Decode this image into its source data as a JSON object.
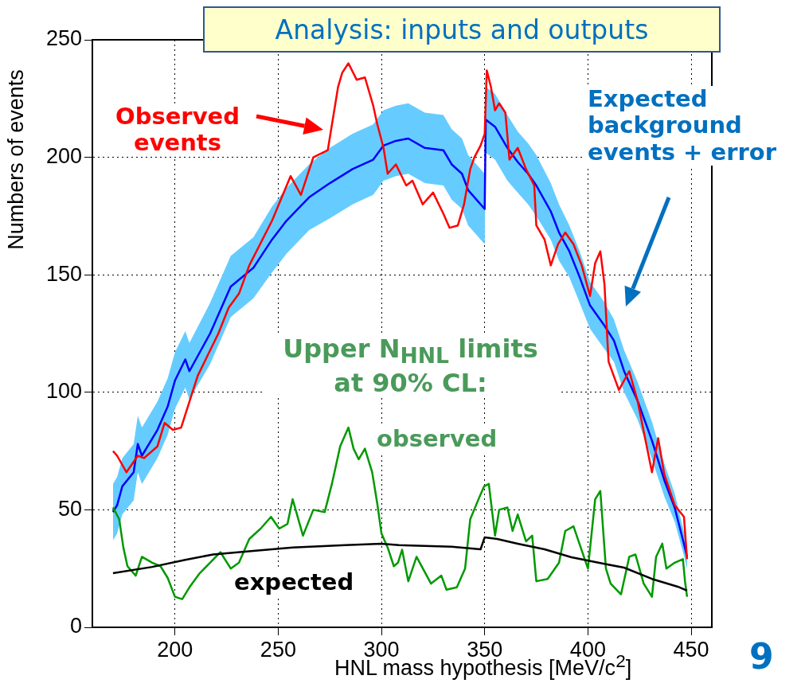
{
  "chart_data": {
    "type": "line",
    "title": "Analysis: inputs and outputs",
    "xlabel": "HNL mass hypothesis [MeV/c$^{2}$]",
    "ylabel": "Numbers of events",
    "xlim": [
      160,
      460
    ],
    "xticks": [
      200,
      250,
      300,
      350,
      400,
      450
    ],
    "ylim": [
      0,
      250
    ],
    "yticks": [
      0,
      50,
      100,
      150,
      200,
      250
    ],
    "grid": true,
    "annotations": [
      "Upper N$_{HNL}$ limits at 90% CL:",
      "9"
    ],
    "series": [
      {
        "name": "Expected background events + error",
        "color": "#0000ff",
        "x": [
          170,
          172,
          174.5,
          180,
          182,
          184,
          191.5,
          196.5,
          200,
          205,
          207,
          217,
          227,
          238,
          247,
          254,
          265,
          275,
          286,
          296,
          301,
          307,
          313,
          321,
          330,
          334,
          339,
          342,
          350,
          350.5,
          355,
          361,
          366,
          371,
          375,
          382,
          386,
          391,
          396,
          401,
          407.5,
          412.6,
          417.5,
          424,
          431,
          437,
          442,
          446.5,
          448
        ],
        "values": [
          49,
          52,
          60,
          66,
          78,
          73,
          84,
          94,
          105,
          114,
          109,
          125,
          145,
          153,
          165,
          173,
          183,
          189,
          195,
          199,
          205,
          207,
          208,
          204,
          203,
          197,
          193,
          186,
          178,
          216,
          213,
          204,
          198,
          193,
          188,
          177,
          168,
          160,
          149,
          137,
          129,
          122,
          109,
          96.5,
          79.5,
          62.6,
          51,
          35.5,
          30
        ],
        "lower": [
          37,
          40,
          48,
          54,
          66,
          61,
          72,
          82,
          93,
          102,
          97,
          112,
          132,
          140,
          151,
          159,
          169,
          174,
          180,
          184,
          190,
          192,
          193,
          189,
          188,
          182,
          178,
          171,
          163,
          202,
          199,
          190,
          185,
          180,
          175,
          165,
          156,
          149,
          138,
          127,
          119,
          113,
          100,
          88.5,
          71.5,
          55.6,
          45,
          30.5,
          25
        ],
        "upper": [
          61,
          64,
          72,
          78,
          90,
          85,
          96,
          106,
          117,
          126,
          121,
          138,
          158,
          166,
          179,
          187,
          197,
          204,
          210,
          214,
          220,
          222,
          223,
          219,
          218,
          212,
          208,
          201,
          193,
          230,
          227,
          218,
          211,
          206,
          201,
          189,
          180,
          171,
          160,
          147,
          139,
          131,
          118,
          104.5,
          87.5,
          69.6,
          57,
          40.5,
          35
        ]
      },
      {
        "name": "Observed events",
        "color": "#ff0000",
        "x": [
          170,
          172,
          176.5,
          182,
          185,
          191.5,
          195,
          199,
          203,
          207,
          211,
          216,
          221,
          226,
          231,
          236,
          247,
          256,
          261,
          267,
          274,
          279,
          281,
          284,
          288,
          292,
          296,
          298,
          301,
          303,
          307,
          312,
          315,
          320,
          325,
          330,
          333,
          337,
          340,
          343,
          345,
          348,
          350,
          351,
          353,
          355,
          357,
          360,
          362,
          366,
          370,
          374,
          375,
          379,
          382,
          385.5,
          389,
          393,
          397,
          401,
          403.5,
          406,
          408,
          409.5,
          410,
          415,
          420,
          424,
          431,
          434,
          437,
          442,
          446.5,
          448
        ],
        "values": [
          75,
          73,
          66,
          73,
          72,
          77,
          87,
          84,
          85,
          96,
          107,
          116,
          125,
          136,
          142,
          154,
          173,
          192,
          184,
          200,
          203,
          230,
          236,
          240,
          233,
          234,
          222,
          214,
          204,
          193,
          197,
          188,
          190,
          180,
          185,
          176,
          170,
          171,
          180,
          195,
          200,
          205,
          210,
          237,
          230,
          220,
          223,
          219,
          199,
          204,
          195,
          188,
          171,
          165,
          154,
          163,
          168,
          163,
          154,
          141,
          155,
          160,
          146,
          121,
          113,
          101,
          109,
          96.5,
          66,
          80.5,
          65,
          52,
          47,
          29
        ]
      },
      {
        "name": "observed",
        "color": "#009900",
        "x": [
          170,
          173,
          175,
          177,
          181,
          184,
          189,
          193,
          196.5,
          200,
          203.5,
          207,
          212,
          217,
          222,
          227,
          231,
          236,
          241.5,
          246.5,
          250.5,
          254.5,
          257,
          262,
          267,
          272.5,
          276,
          280,
          284,
          286.5,
          289,
          292,
          295.5,
          298,
          300,
          303,
          306,
          308,
          310,
          313,
          317,
          324,
          329,
          331.5,
          336.5,
          340.5,
          343,
          347,
          349.7,
          352,
          355,
          357,
          361,
          363.5,
          366,
          370,
          373,
          375,
          380.5,
          386,
          389,
          393,
          400,
          403.5,
          406,
          408.7,
          411,
          416,
          420,
          423,
          427,
          431,
          433,
          436,
          438,
          442,
          446,
          447,
          448
        ],
        "values": [
          51,
          46,
          34,
          26,
          22,
          30,
          27.5,
          26,
          21,
          13,
          12,
          17,
          23,
          27.5,
          32,
          25,
          27.5,
          37.6,
          42,
          47,
          42,
          44,
          54.5,
          39,
          50,
          49,
          61,
          77,
          85,
          76,
          71.5,
          76,
          66,
          52.5,
          40,
          34,
          26,
          27.5,
          33,
          19.6,
          30,
          18.6,
          22,
          16,
          17,
          25,
          46,
          54.5,
          60,
          61,
          39,
          50,
          51,
          41,
          48,
          36.6,
          39,
          19.6,
          20.6,
          27.5,
          41,
          43,
          25,
          54.5,
          58,
          25,
          18.6,
          14,
          30,
          31,
          18.6,
          13,
          30,
          35.6,
          25,
          27.5,
          29,
          19.6,
          13
        ]
      },
      {
        "name": "expected",
        "color": "#000000",
        "x": [
          170,
          189,
          205,
          218.5,
          238,
          257,
          282.5,
          300,
          308.5,
          334,
          348,
          350,
          356,
          366,
          379,
          392,
          405,
          417.5,
          431,
          443.5,
          448
        ],
        "values": [
          23,
          25.7,
          28.7,
          31,
          32.5,
          34,
          35,
          35.6,
          35,
          34.3,
          33.2,
          38.3,
          37.6,
          35.6,
          33.2,
          29.8,
          27.5,
          25.4,
          20.6,
          17.3,
          15.6
        ]
      }
    ]
  }
}
